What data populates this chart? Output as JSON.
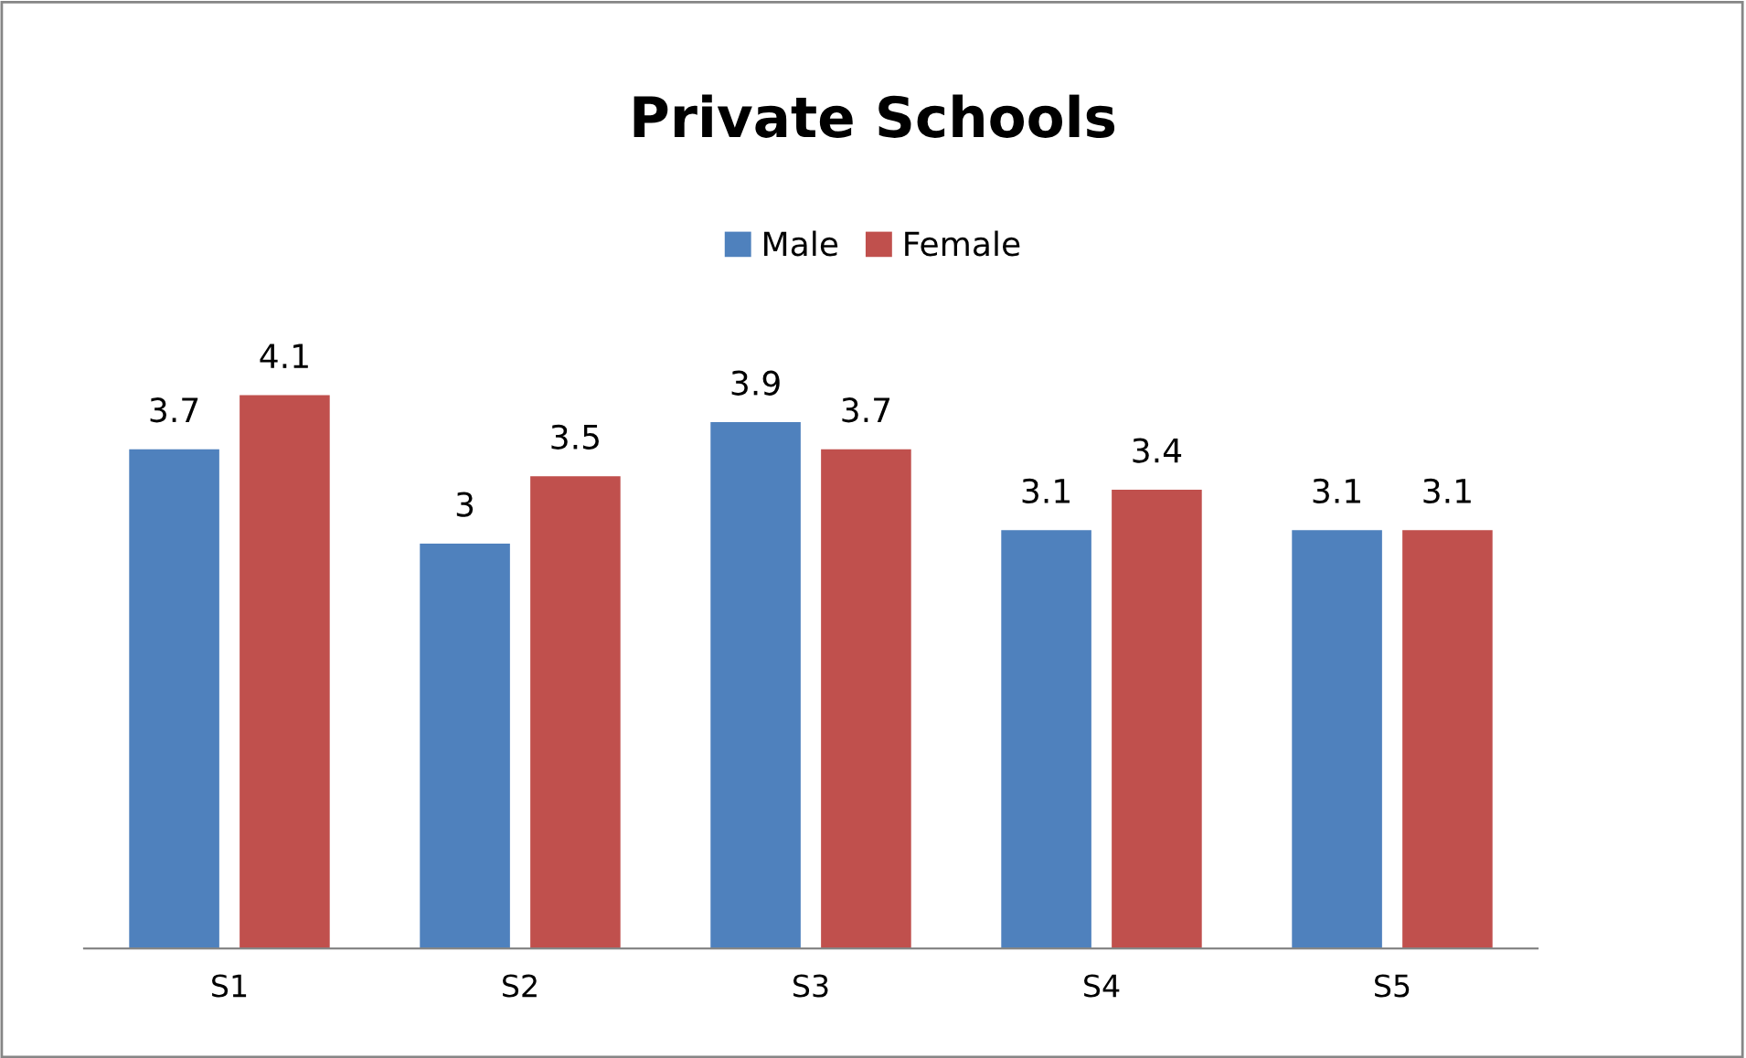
{
  "chart_data": {
    "type": "bar",
    "title": "Private Schools",
    "categories": [
      "S1",
      "S2",
      "S3",
      "S4",
      "S5"
    ],
    "series": [
      {
        "name": "Male",
        "color": "#4f81bd",
        "values": [
          3.7,
          3,
          3.9,
          3.1,
          3.1
        ]
      },
      {
        "name": "Female",
        "color": "#c0504d",
        "values": [
          4.1,
          3.5,
          3.7,
          3.4,
          3.1
        ]
      }
    ],
    "data_labels": true,
    "legend": "top",
    "grid": false
  }
}
